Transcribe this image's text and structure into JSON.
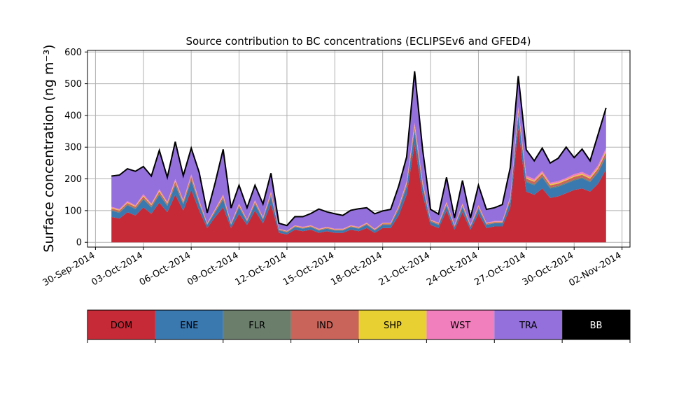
{
  "chart_data": {
    "type": "area",
    "stacked": true,
    "title": "Source contribution to BC concentrations (ECLIPSEv6 and GFED4)",
    "ylabel": "Surface concentration (ng m⁻³)",
    "xlabel": "",
    "ylim": [
      -15,
      605
    ],
    "xlim": [
      "2014-09-29T12:00",
      "2014-11-02T12:00"
    ],
    "grid": true,
    "yticks": [
      0,
      100,
      200,
      300,
      400,
      500,
      600
    ],
    "xticks": [
      "30-Sep-2014",
      "03-Oct-2014",
      "06-Oct-2014",
      "09-Oct-2014",
      "12-Oct-2014",
      "15-Oct-2014",
      "18-Oct-2014",
      "21-Oct-2014",
      "24-Oct-2014",
      "27-Oct-2014",
      "30-Oct-2014",
      "02-Nov-2014"
    ],
    "x": [
      "2014-10-01T00:00",
      "2014-10-01T12:00",
      "2014-10-02T00:00",
      "2014-10-02T12:00",
      "2014-10-03T00:00",
      "2014-10-03T12:00",
      "2014-10-04T00:00",
      "2014-10-04T12:00",
      "2014-10-05T00:00",
      "2014-10-05T12:00",
      "2014-10-06T00:00",
      "2014-10-06T12:00",
      "2014-10-07T00:00",
      "2014-10-07T12:00",
      "2014-10-08T00:00",
      "2014-10-08T12:00",
      "2014-10-09T00:00",
      "2014-10-09T12:00",
      "2014-10-10T00:00",
      "2014-10-10T12:00",
      "2014-10-11T00:00",
      "2014-10-11T12:00",
      "2014-10-12T00:00",
      "2014-10-12T12:00",
      "2014-10-13T00:00",
      "2014-10-13T12:00",
      "2014-10-14T00:00",
      "2014-10-14T12:00",
      "2014-10-15T00:00",
      "2014-10-15T12:00",
      "2014-10-16T00:00",
      "2014-10-16T12:00",
      "2014-10-17T00:00",
      "2014-10-17T12:00",
      "2014-10-18T00:00",
      "2014-10-18T12:00",
      "2014-10-19T00:00",
      "2014-10-19T12:00",
      "2014-10-20T00:00",
      "2014-10-20T12:00",
      "2014-10-21T00:00",
      "2014-10-21T12:00",
      "2014-10-22T00:00",
      "2014-10-22T12:00",
      "2014-10-23T00:00",
      "2014-10-23T12:00",
      "2014-10-24T00:00",
      "2014-10-24T12:00",
      "2014-10-25T00:00",
      "2014-10-25T12:00",
      "2014-10-26T00:00",
      "2014-10-26T12:00",
      "2014-10-27T00:00",
      "2014-10-27T12:00",
      "2014-10-28T00:00",
      "2014-10-28T12:00",
      "2014-10-29T00:00",
      "2014-10-29T12:00",
      "2014-10-30T00:00",
      "2014-10-30T12:00",
      "2014-10-31T00:00",
      "2014-10-31T12:00",
      "2014-11-01T00:00"
    ],
    "series": [
      {
        "name": "DOM",
        "color": "#c62a37",
        "values": [
          80,
          75,
          95,
          85,
          110,
          90,
          125,
          95,
          150,
          100,
          165,
          100,
          45,
          80,
          110,
          45,
          90,
          55,
          100,
          60,
          120,
          30,
          25,
          40,
          35,
          40,
          30,
          35,
          30,
          30,
          40,
          35,
          45,
          30,
          45,
          45,
          85,
          150,
          310,
          150,
          55,
          45,
          100,
          40,
          95,
          40,
          90,
          45,
          50,
          50,
          110,
          360,
          160,
          150,
          170,
          140,
          145,
          155,
          165,
          170,
          160,
          185,
          230
        ]
      },
      {
        "name": "ENE",
        "color": "#3a78b0",
        "values": [
          20,
          18,
          22,
          20,
          25,
          20,
          25,
          20,
          30,
          20,
          30,
          20,
          10,
          15,
          25,
          10,
          20,
          10,
          20,
          12,
          25,
          8,
          6,
          8,
          8,
          8,
          7,
          8,
          7,
          7,
          8,
          8,
          10,
          7,
          10,
          10,
          18,
          25,
          40,
          25,
          10,
          10,
          15,
          8,
          15,
          8,
          15,
          10,
          10,
          10,
          20,
          40,
          30,
          30,
          35,
          30,
          30,
          30,
          30,
          32,
          30,
          35,
          40
        ]
      },
      {
        "name": "FLR",
        "color": "#6b7e6c",
        "values": [
          2,
          2,
          2,
          2,
          3,
          2,
          3,
          2,
          3,
          2,
          3,
          2,
          1,
          2,
          2,
          1,
          2,
          1,
          2,
          1,
          2,
          1,
          1,
          1,
          1,
          1,
          1,
          1,
          1,
          1,
          1,
          1,
          1,
          1,
          1,
          1,
          2,
          2,
          4,
          2,
          1,
          1,
          2,
          1,
          2,
          1,
          2,
          1,
          1,
          1,
          2,
          4,
          3,
          3,
          3,
          3,
          3,
          3,
          3,
          3,
          3,
          3,
          4
        ]
      },
      {
        "name": "IND",
        "color": "#c8645a",
        "values": [
          5,
          5,
          5,
          5,
          6,
          5,
          7,
          5,
          8,
          5,
          8,
          5,
          2,
          4,
          6,
          2,
          5,
          3,
          5,
          3,
          6,
          2,
          2,
          2,
          2,
          2,
          2,
          2,
          2,
          2,
          2,
          2,
          3,
          2,
          3,
          3,
          5,
          7,
          10,
          7,
          3,
          3,
          5,
          3,
          5,
          3,
          5,
          3,
          3,
          3,
          6,
          10,
          8,
          8,
          8,
          7,
          7,
          7,
          8,
          8,
          8,
          9,
          10
        ]
      },
      {
        "name": "SHP",
        "color": "#e8cf32",
        "values": [
          2,
          2,
          2,
          2,
          3,
          2,
          3,
          2,
          3,
          2,
          3,
          2,
          1,
          2,
          3,
          1,
          2,
          1,
          2,
          1,
          3,
          1,
          1,
          1,
          1,
          1,
          1,
          1,
          1,
          1,
          1,
          1,
          1,
          1,
          1,
          1,
          2,
          3,
          5,
          3,
          1,
          1,
          2,
          1,
          2,
          1,
          2,
          1,
          1,
          1,
          2,
          5,
          3,
          3,
          3,
          3,
          3,
          3,
          3,
          3,
          3,
          4,
          5
        ]
      },
      {
        "name": "WST",
        "color": "#f27fbd",
        "values": [
          3,
          3,
          4,
          3,
          5,
          3,
          5,
          4,
          6,
          4,
          6,
          4,
          2,
          3,
          5,
          2,
          4,
          2,
          4,
          2,
          5,
          1,
          1,
          2,
          2,
          2,
          2,
          2,
          2,
          2,
          2,
          2,
          2,
          2,
          2,
          2,
          3,
          5,
          8,
          5,
          2,
          2,
          4,
          2,
          4,
          2,
          4,
          2,
          2,
          2,
          4,
          8,
          6,
          6,
          6,
          5,
          5,
          5,
          6,
          6,
          6,
          7,
          8
        ]
      },
      {
        "name": "TRA",
        "color": "#9370db",
        "values": [
          95,
          105,
          100,
          105,
          85,
          85,
          120,
          75,
          115,
          75,
          80,
          85,
          30,
          80,
          140,
          45,
          55,
          35,
          45,
          40,
          55,
          15,
          15,
          25,
          30,
          35,
          60,
          45,
          45,
          40,
          45,
          55,
          45,
          45,
          35,
          40,
          60,
          75,
          160,
          100,
          30,
          25,
          75,
          20,
          70,
          20,
          60,
          40,
          40,
          50,
          90,
          95,
          80,
          55,
          70,
          60,
          70,
          95,
          50,
          70,
          45,
          95,
          125
        ]
      },
      {
        "name": "BB",
        "color": "#000000",
        "values": [
          2,
          2,
          2,
          2,
          2,
          2,
          2,
          2,
          2,
          2,
          2,
          2,
          2,
          2,
          2,
          2,
          2,
          2,
          2,
          2,
          2,
          2,
          2,
          2,
          2,
          2,
          2,
          2,
          2,
          2,
          2,
          2,
          2,
          2,
          2,
          2,
          2,
          2,
          2,
          2,
          2,
          2,
          2,
          2,
          2,
          2,
          2,
          2,
          2,
          2,
          2,
          2,
          2,
          2,
          2,
          2,
          2,
          2,
          2,
          2,
          2,
          2,
          2
        ]
      }
    ]
  }
}
